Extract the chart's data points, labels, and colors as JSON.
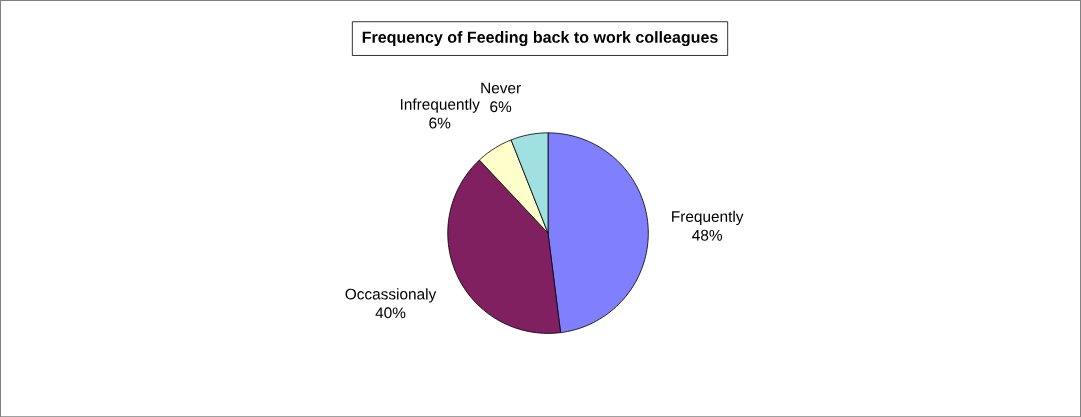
{
  "chart_data": {
    "type": "pie",
    "title": "Frequency of Feeding back to work colleagues",
    "categories": [
      "Frequently",
      "Occassionaly",
      "Infrequently",
      "Never"
    ],
    "values": [
      48,
      40,
      6,
      6
    ],
    "colors": [
      "#8080ff",
      "#802060",
      "#ffffcc",
      "#a0e0e0"
    ],
    "value_labels": [
      "48%",
      "40%",
      "6%",
      "6%"
    ]
  }
}
